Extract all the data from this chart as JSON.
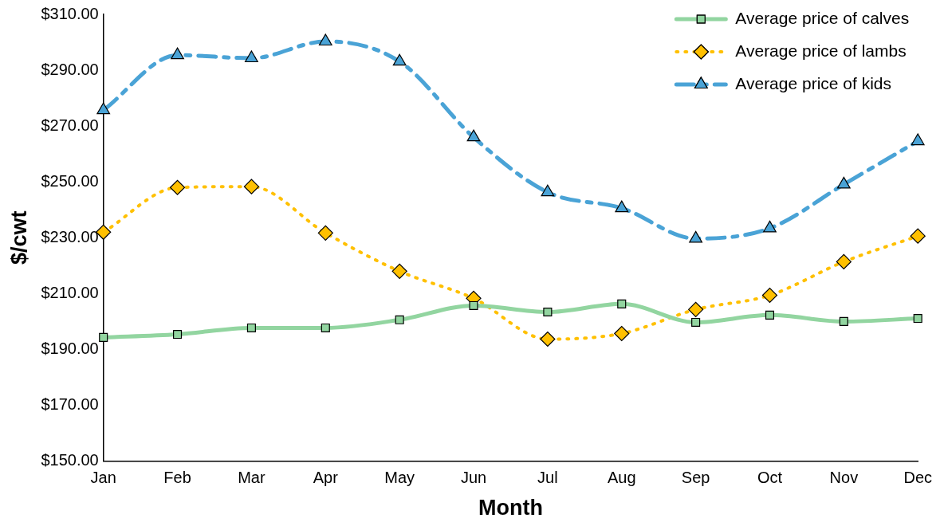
{
  "chart_data": {
    "type": "line",
    "xlabel": "Month",
    "ylabel": "$/cwt",
    "categories": [
      "Jan",
      "Feb",
      "Mar",
      "Apr",
      "May",
      "Jun",
      "Jul",
      "Aug",
      "Sep",
      "Oct",
      "Nov",
      "Dec"
    ],
    "series": [
      {
        "name": "Average price of calves",
        "color": "#92d5a0",
        "marker": "square",
        "line_style": "solid",
        "values": [
          194.3,
          195.4,
          197.7,
          197.7,
          200.6,
          205.7,
          203.4,
          206.3,
          199.7,
          202.3,
          200,
          201.1
        ]
      },
      {
        "name": "Average price of lambs",
        "color": "#ffc000",
        "marker": "diamond",
        "line_style": "dotted",
        "values": [
          232,
          248,
          248.3,
          231.7,
          218,
          208.3,
          193.7,
          195.7,
          204.3,
          209.4,
          221.4,
          230.6
        ]
      },
      {
        "name": "Average price of kids",
        "color": "#4aa3d6",
        "marker": "triangle",
        "line_style": "dashed",
        "values": [
          275.7,
          295.4,
          294.3,
          300.3,
          293.1,
          266,
          246.3,
          240.6,
          229.7,
          233.4,
          249.1,
          264.6
        ]
      }
    ],
    "ylim": [
      150,
      310
    ],
    "yticks": [
      {
        "value": 150,
        "label": "$150.00"
      },
      {
        "value": 170,
        "label": "$170.00"
      },
      {
        "value": 190,
        "label": "$190.00"
      },
      {
        "value": 210,
        "label": "$210.00"
      },
      {
        "value": 230,
        "label": "$230.00"
      },
      {
        "value": 250,
        "label": "$250.00"
      },
      {
        "value": 270,
        "label": "$270.00"
      },
      {
        "value": 290,
        "label": "$290.00"
      },
      {
        "value": 310,
        "label": "$310.00"
      }
    ],
    "grid": false,
    "legend": "top right"
  }
}
